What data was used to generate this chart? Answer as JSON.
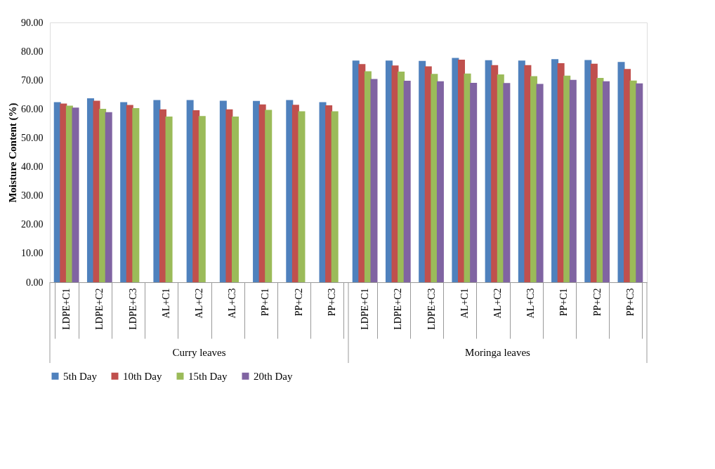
{
  "chart_data": {
    "type": "bar",
    "ylabel": "Moisture Content (%)",
    "categories": [
      "LDPE+C1",
      "LDPE+C2",
      "LDPE+C3",
      "AL+C1",
      "AL+C2",
      "AL+C3",
      "PP+C1",
      "PP+C2",
      "PP+C3",
      "LDPE+C1",
      "LDPE+C2",
      "LDPE+C3",
      "AL+C1",
      "AL+C2",
      "AL+C3",
      "PP+C1",
      "PP+C2",
      "PP+C3"
    ],
    "series": [
      {
        "name": "5th Day",
        "color": "#4f81bd",
        "values": [
          62.4,
          63.7,
          62.4,
          63.1,
          63.1,
          62.9,
          62.8,
          63.1,
          62.4,
          76.8,
          76.8,
          76.7,
          77.7,
          76.9,
          76.8,
          77.3,
          77.0,
          76.3
        ]
      },
      {
        "name": "10th Day",
        "color": "#c0504d",
        "values": [
          61.9,
          62.9,
          61.4,
          59.9,
          59.6,
          59.9,
          61.6,
          61.5,
          61.3,
          75.6,
          75.1,
          74.8,
          77.1,
          75.2,
          75.2,
          75.9,
          75.7,
          73.9
        ]
      },
      {
        "name": "15th Day",
        "color": "#9bbb59",
        "values": [
          61.2,
          60.1,
          60.3,
          57.4,
          57.6,
          57.4,
          59.7,
          59.2,
          59.2,
          73.1,
          73.0,
          72.2,
          72.3,
          72.0,
          71.4,
          71.6,
          70.8,
          69.9
        ]
      },
      {
        "name": "20th Day",
        "color": "#8064a2",
        "values": [
          60.5,
          58.9,
          null,
          null,
          null,
          null,
          null,
          null,
          null,
          70.4,
          69.8,
          69.6,
          69.1,
          69.0,
          68.7,
          70.1,
          69.6,
          68.9
        ]
      }
    ],
    "ylim": [
      0,
      90
    ],
    "yticks": [
      {
        "value": 0,
        "label": "0.00"
      },
      {
        "value": 10,
        "label": "10.00"
      },
      {
        "value": 20,
        "label": "20.00"
      },
      {
        "value": 30,
        "label": "30.00"
      },
      {
        "value": 40,
        "label": "40.00"
      },
      {
        "value": 50,
        "label": "50.00"
      },
      {
        "value": 60,
        "label": "60.00"
      },
      {
        "value": 70,
        "label": "70.00"
      },
      {
        "value": 80,
        "label": "80.00"
      },
      {
        "value": 90,
        "label": "90.00"
      }
    ],
    "annotations": [
      "Curry leaves",
      "Moringa leaves"
    ],
    "grid": false,
    "legend": "bottom"
  }
}
